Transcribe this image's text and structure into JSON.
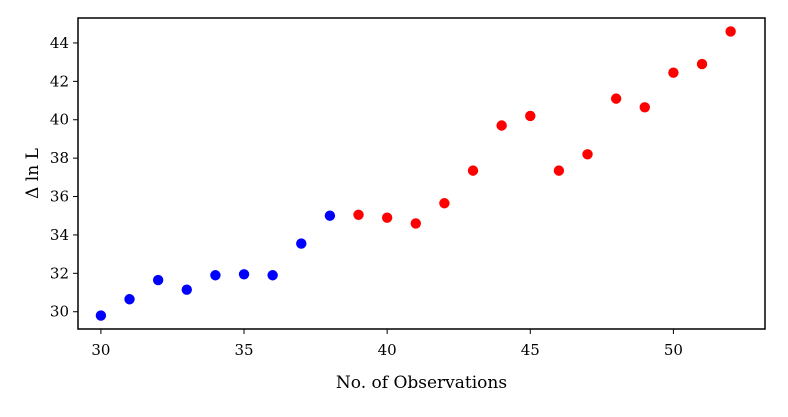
{
  "chart_data": {
    "type": "scatter",
    "title": "",
    "xlabel": "No. of Observations",
    "ylabel": "Δ ln L",
    "xlim": [
      29.2,
      53.2
    ],
    "ylim": [
      29.1,
      45.3
    ],
    "xticks": [
      30,
      35,
      40,
      45,
      50
    ],
    "yticks": [
      30,
      32,
      34,
      36,
      38,
      40,
      42,
      44
    ],
    "grid": false,
    "series": [
      {
        "color": "#0000ff",
        "points": [
          {
            "x": 30,
            "y": 29.8
          },
          {
            "x": 31,
            "y": 30.65
          },
          {
            "x": 32,
            "y": 31.65
          },
          {
            "x": 33,
            "y": 31.15
          },
          {
            "x": 34,
            "y": 31.9
          },
          {
            "x": 35,
            "y": 31.95
          },
          {
            "x": 36,
            "y": 31.9
          },
          {
            "x": 37,
            "y": 33.55
          },
          {
            "x": 38,
            "y": 35.0
          }
        ]
      },
      {
        "color": "#ff0000",
        "points": [
          {
            "x": 39,
            "y": 35.05
          },
          {
            "x": 40,
            "y": 34.9
          },
          {
            "x": 41,
            "y": 34.6
          },
          {
            "x": 42,
            "y": 35.65
          },
          {
            "x": 43,
            "y": 37.35
          },
          {
            "x": 44,
            "y": 39.7
          },
          {
            "x": 45,
            "y": 40.2
          },
          {
            "x": 46,
            "y": 37.35
          },
          {
            "x": 47,
            "y": 38.2
          },
          {
            "x": 48,
            "y": 41.1
          },
          {
            "x": 49,
            "y": 40.65
          },
          {
            "x": 50,
            "y": 42.45
          },
          {
            "x": 51,
            "y": 42.9
          },
          {
            "x": 52,
            "y": 44.6
          }
        ]
      }
    ]
  }
}
